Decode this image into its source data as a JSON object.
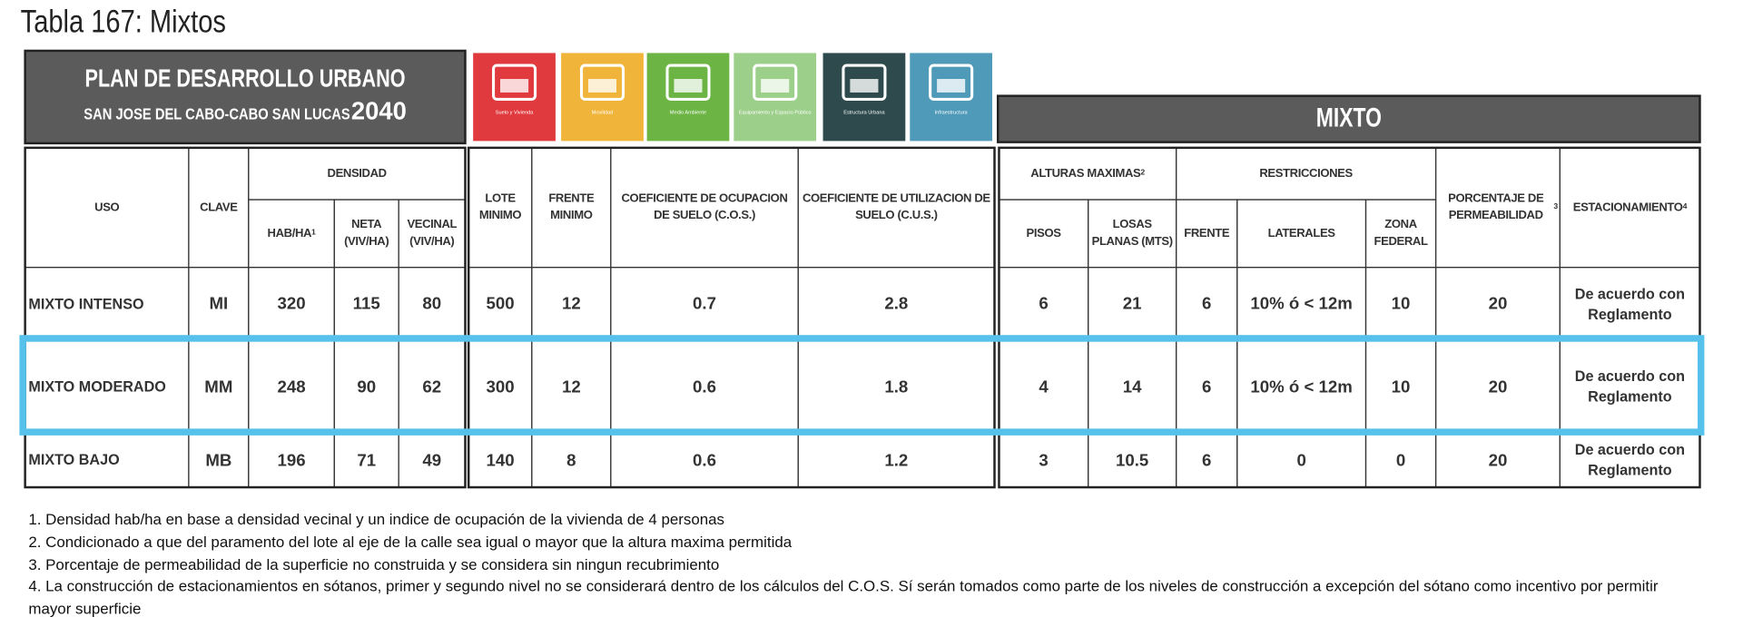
{
  "title": "Tabla 167: Mixtos",
  "header": {
    "title": "PLAN DE DESARROLLO URBANO",
    "subtitle": "SAN JOSE DEL CABO-CABO SAN LUCAS",
    "year": "2040"
  },
  "icons": [
    "Suelo y Vivienda",
    "Movilidad",
    "Medio Ambiente",
    "Equipamiento y Espacio Público",
    "Estructura Urbana",
    "Infraestructura"
  ],
  "section": "MIXTO",
  "table": {
    "headers": {
      "uso": "USO",
      "clave": "CLAVE",
      "densidad": "DENSIDAD",
      "hab": {
        "text": "HAB/HA",
        "sup": "1"
      },
      "neta": "NETA (VIV/HA)",
      "vecinal": "VECINAL (VIV/HA)",
      "lote": "LOTE MINIMO",
      "frente_minimo": "FRENTE MINIMO",
      "cos": "COEFICIENTE DE OCUPACION DE SUELO (C.O.S.)",
      "cus": "COEFICIENTE DE UTILIZACION DE SUELO (C.U.S.)",
      "alturas": {
        "text": "ALTURAS MAXIMAS",
        "sup": "2"
      },
      "pisos": "PISOS",
      "losas": "LOSAS PLANAS (MTS)",
      "restricciones": "RESTRICCIONES",
      "frente": "FRENTE",
      "laterales": "LATERALES",
      "zona": "ZONA FEDERAL",
      "permeabilidad": {
        "text": "PORCENTAJE DE PERMEABILIDAD",
        "sup": "3"
      },
      "estacionamiento": {
        "text": "ESTACIONAMIENTO",
        "sup": "4"
      }
    },
    "rows": [
      [
        "MIXTO INTENSO",
        "MI",
        320,
        115,
        80,
        500,
        12,
        0.7,
        2.8,
        6,
        21,
        6,
        "10% ó < 12m",
        10,
        20,
        "De acuerdo con Reglamento"
      ],
      [
        "MIXTO MODERADO",
        "MM",
        248,
        90,
        62,
        300,
        12,
        0.6,
        1.8,
        4,
        14,
        6,
        "10% ó < 12m",
        10,
        20,
        "De acuerdo con Reglamento"
      ],
      [
        "MIXTO BAJO",
        "MB",
        196,
        71,
        49,
        140,
        8,
        0.6,
        1.2,
        3,
        10.5,
        6,
        0,
        0,
        20,
        "De acuerdo con Reglamento"
      ]
    ]
  },
  "footnotes": [
    "1. Densidad hab/ha en base a densidad vecinal y un indice de ocupación de la vivienda de 4 personas",
    "2. Condicionado a que del paramento del lote al eje de la calle sea igual o mayor que la altura maxima permitida",
    "3. Porcentaje de permeabilidad de la superficie no construida y se considera sin ningun recubrimiento",
    "4. La construcción de estacionamientos en sótanos, primer y segundo nivel no se considerará dentro de los cálculos del C.O.S. Sí serán tomados como parte de los niveles de construcción a excepción del sótano como incentivo por permitir mayor superficie"
  ]
}
